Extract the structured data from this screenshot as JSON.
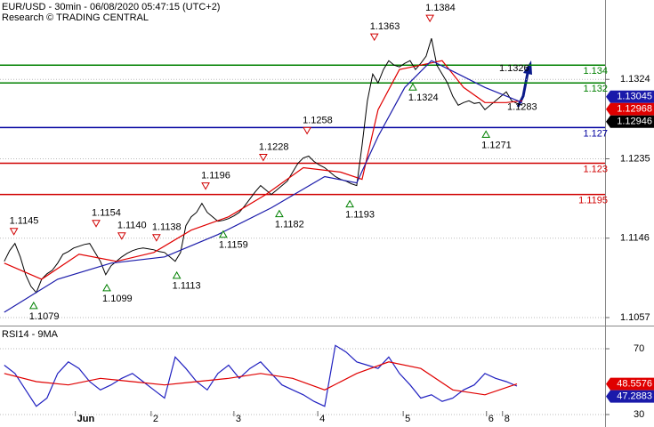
{
  "chart_data": [
    {
      "type": "line",
      "title": "EUR/USD - 30min - 06/08/2020 05:47:15 (UTC+2)",
      "subtitle": "Research © TRADING CENTRAL",
      "xlim": [
        -0.8,
        112.5
      ],
      "ylim": [
        1.1048,
        1.1413
      ],
      "yticks": [
        1.1057,
        1.1146,
        1.1235,
        1.1324
      ],
      "grid": true,
      "series": [
        {
          "color": "#000000",
          "x": [
            0,
            1,
            2,
            3,
            4,
            5,
            6,
            7,
            8,
            9,
            10,
            11,
            12,
            13,
            14,
            15,
            16,
            17,
            18,
            19,
            20,
            21,
            22,
            23,
            24,
            25,
            26,
            27,
            28,
            29,
            30,
            31,
            32,
            33,
            34,
            35,
            36,
            37,
            38,
            39,
            40,
            41,
            42,
            43,
            44,
            45,
            46,
            47,
            48,
            49,
            50,
            51,
            52,
            53,
            54,
            55,
            56,
            57,
            58,
            59,
            60,
            61,
            62,
            63,
            64,
            65,
            66,
            67,
            68,
            69,
            70,
            71,
            72,
            73,
            74,
            75,
            76,
            77,
            78,
            79,
            80,
            81,
            82,
            83,
            84,
            85,
            86,
            87,
            88,
            89,
            90,
            91,
            92,
            93,
            94,
            95,
            96,
            97
          ],
          "values": [
            1.112,
            1.1132,
            1.114,
            1.1125,
            1.1105,
            1.1092,
            1.1085,
            1.11,
            1.1106,
            1.111,
            1.1118,
            1.1128,
            1.1131,
            1.1135,
            1.1137,
            1.1139,
            1.114,
            1.113,
            1.112,
            1.1105,
            1.1115,
            1.112,
            1.1125,
            1.1129,
            1.1132,
            1.1134,
            1.1135,
            1.1134,
            1.1133,
            1.1131,
            1.113,
            1.1125,
            1.112,
            1.113,
            1.116,
            1.117,
            1.1175,
            1.1185,
            1.1175,
            1.117,
            1.1165,
            1.1166,
            1.1168,
            1.1171,
            1.1175,
            1.1182,
            1.119,
            1.1198,
            1.1205,
            1.12,
            1.1195,
            1.12,
            1.1205,
            1.121,
            1.122,
            1.123,
            1.1236,
            1.1238,
            1.1232,
            1.1228,
            1.1225,
            1.122,
            1.1215,
            1.1212,
            1.121,
            1.1207,
            1.1205,
            1.125,
            1.13,
            1.133,
            1.132,
            1.1335,
            1.1345,
            1.134,
            1.1338,
            1.1342,
            1.1345,
            1.1335,
            1.1342,
            1.135,
            1.137,
            1.134,
            1.133,
            1.132,
            1.1305,
            1.1295,
            1.1298,
            1.13,
            1.1297,
            1.1298,
            1.129,
            1.1295,
            1.13,
            1.1305,
            1.131,
            1.13,
            1.1297,
            1.1295
          ]
        },
        {
          "color": "#e00000",
          "x": [
            0,
            7,
            14,
            21,
            28,
            35,
            42,
            49,
            56,
            63,
            67,
            70,
            74,
            78,
            82,
            86,
            90,
            94,
            97
          ],
          "values": [
            1.1118,
            1.11,
            1.1128,
            1.112,
            1.113,
            1.1155,
            1.117,
            1.1195,
            1.1225,
            1.122,
            1.1212,
            1.129,
            1.1335,
            1.134,
            1.1345,
            1.1315,
            1.1298,
            1.1298,
            1.13
          ]
        },
        {
          "color": "#1a1aaa",
          "x": [
            0,
            10,
            20,
            30,
            40,
            50,
            60,
            66,
            70,
            75,
            80,
            85,
            90,
            97
          ],
          "values": [
            1.1063,
            1.11,
            1.1118,
            1.1125,
            1.115,
            1.118,
            1.1215,
            1.1208,
            1.126,
            1.1315,
            1.1345,
            1.133,
            1.1315,
            1.1298
          ]
        }
      ],
      "levels": [
        {
          "value": 1.134,
          "color": "#008000"
        },
        {
          "value": 1.132,
          "color": "#008000"
        },
        {
          "value": 1.127,
          "color": "#0000a0"
        },
        {
          "value": 1.123,
          "color": "#d00000"
        },
        {
          "value": 1.1195,
          "color": "#d00000"
        }
      ],
      "annotations": [
        {
          "x": 1.8,
          "value": 1.1145,
          "label": "1.1145",
          "marker": "down"
        },
        {
          "x": 5.5,
          "value": 1.1079,
          "label": "1.1079",
          "marker": "up"
        },
        {
          "x": 17.2,
          "value": 1.1154,
          "label": "1.1154",
          "marker": "down"
        },
        {
          "x": 19.2,
          "value": 1.1099,
          "label": "1.1099",
          "marker": "up"
        },
        {
          "x": 22,
          "value": 1.114,
          "label": "1.1140",
          "marker": "down"
        },
        {
          "x": 28.5,
          "value": 1.1138,
          "label": "1.1138",
          "marker": "down"
        },
        {
          "x": 32.3,
          "value": 1.1113,
          "label": "1.1113",
          "marker": "up"
        },
        {
          "x": 37.7,
          "value": 1.1196,
          "label": "1.1196",
          "marker": "down"
        },
        {
          "x": 41,
          "value": 1.1159,
          "label": "1.1159",
          "marker": "up"
        },
        {
          "x": 48.5,
          "value": 1.1228,
          "label": "1.1228",
          "marker": "down"
        },
        {
          "x": 51.5,
          "value": 1.1182,
          "label": "1.1182",
          "marker": "up"
        },
        {
          "x": 56.7,
          "value": 1.1258,
          "label": "1.1258",
          "marker": "down"
        },
        {
          "x": 64.7,
          "value": 1.1193,
          "label": "1.1193",
          "marker": "up"
        },
        {
          "x": 69.3,
          "value": 1.1363,
          "label": "1.1363",
          "marker": "down"
        },
        {
          "x": 76.5,
          "value": 1.1324,
          "label": "1.1324",
          "marker": "up"
        },
        {
          "x": 79.7,
          "value": 1.1384,
          "label": "1.1384",
          "marker": "down"
        },
        {
          "x": 90.2,
          "value": 1.1271,
          "label": "1.1271",
          "marker": "up"
        },
        {
          "x": 95,
          "value": 1.1283,
          "label": "1.1283"
        },
        {
          "x": 93.5,
          "value": 1.1326,
          "label": "1.1326"
        }
      ],
      "last": [
        {
          "value": 1.13045,
          "color": "#1a1aaa"
        },
        {
          "value": 1.12968,
          "color": "#e00000"
        },
        {
          "value": 1.12946,
          "color": "#000000"
        }
      ]
    },
    {
      "type": "line",
      "title": "RSI14 - 9MA",
      "xlim": [
        -0.8,
        112.5
      ],
      "ylim": [
        23.5,
        83
      ],
      "yticks": [
        30,
        70
      ],
      "grid": true,
      "xticks": [
        {
          "value": 13.3,
          "label": "Jun"
        },
        {
          "value": 27.5,
          "label": "2"
        },
        {
          "value": 43,
          "label": "3"
        },
        {
          "value": 58.7,
          "label": "4"
        },
        {
          "value": 74.7,
          "label": "5"
        },
        {
          "value": 90.3,
          "label": "6"
        },
        {
          "value": 93.3,
          "label": "8"
        }
      ],
      "series": [
        {
          "color": "#2020c0",
          "x": [
            0,
            2,
            4,
            6,
            8,
            10,
            12,
            14,
            16,
            18,
            20,
            22,
            24,
            26,
            28,
            30,
            32,
            34,
            36,
            38,
            40,
            42,
            44,
            46,
            48,
            50,
            52,
            54,
            56,
            58,
            60,
            62,
            64,
            66,
            68,
            70,
            72,
            74,
            76,
            78,
            80,
            82,
            84,
            86,
            88,
            90,
            92,
            94,
            96
          ],
          "values": [
            60,
            55,
            45,
            35,
            40,
            55,
            62,
            58,
            50,
            45,
            48,
            52,
            55,
            50,
            45,
            40,
            65,
            58,
            50,
            45,
            55,
            60,
            52,
            58,
            62,
            55,
            48,
            45,
            42,
            38,
            35,
            72,
            68,
            62,
            60,
            58,
            65,
            55,
            48,
            40,
            42,
            38,
            40,
            45,
            48,
            55,
            52,
            50,
            47.3
          ]
        },
        {
          "color": "#e00000",
          "x": [
            0,
            6,
            12,
            18,
            24,
            30,
            36,
            42,
            48,
            54,
            60,
            66,
            72,
            78,
            84,
            90,
            96
          ],
          "values": [
            55,
            50,
            48,
            52,
            50,
            48,
            50,
            52,
            55,
            52,
            45,
            55,
            62,
            58,
            45,
            42,
            48.6
          ]
        }
      ],
      "last": [
        {
          "value": 48.5576,
          "color": "#e00000"
        },
        {
          "value": 47.2883,
          "color": "#1a1aaa"
        }
      ]
    }
  ]
}
